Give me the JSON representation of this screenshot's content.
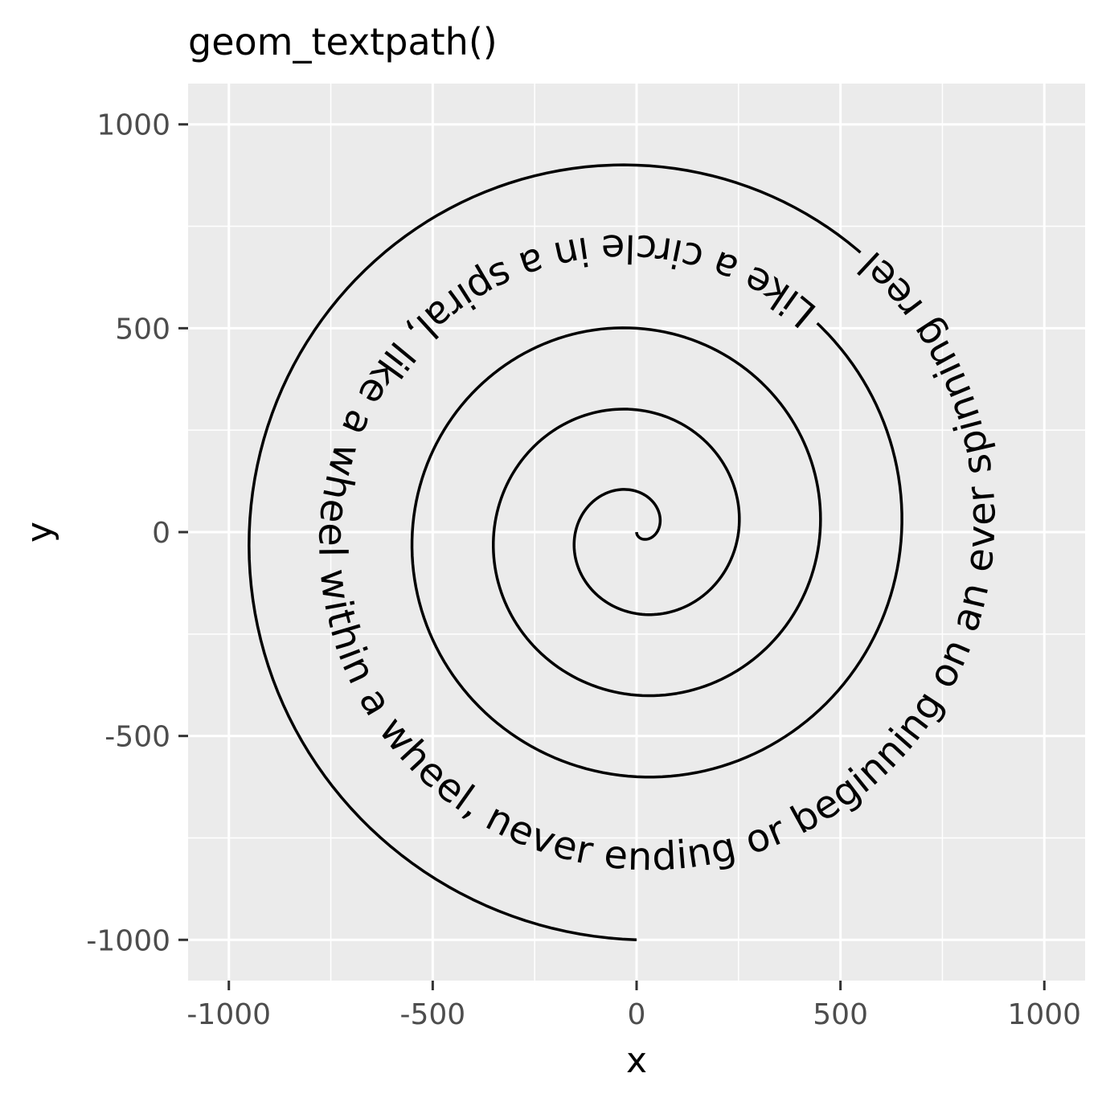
{
  "chart_data": {
    "type": "line",
    "title": "geom_textpath()",
    "xlabel": "x",
    "ylabel": "y",
    "xlim": [
      -1100,
      1100
    ],
    "ylim": [
      -1100,
      1100
    ],
    "grid": true,
    "x_ticks": [
      -1000,
      -500,
      0,
      500,
      1000
    ],
    "x_tick_labels": [
      "-1000",
      "-500",
      "0",
      "500",
      "1000"
    ],
    "y_ticks": [
      -1000,
      -500,
      0,
      500,
      1000
    ],
    "y_tick_labels": [
      "-1000",
      "-500",
      "0",
      "500",
      "1000"
    ],
    "series": [
      {
        "shape": "spiral",
        "t_range": [
          0,
          5.0
        ],
        "points": [
          {
            "x": 0,
            "y": 0
          },
          {
            "x": -50,
            "y": -25
          },
          {
            "x": -100,
            "y": 50
          },
          {
            "x": 50,
            "y": 175
          },
          {
            "x": 255,
            "y": -60
          },
          {
            "x": -55,
            "y": -340
          },
          {
            "x": -425,
            "y": 50
          },
          {
            "x": -385,
            "y": 240
          },
          {
            "x": 765,
            "y": 445
          },
          {
            "x": 920,
            "y": -50
          },
          {
            "x": 0,
            "y": -1000
          }
        ],
        "label": "Like a circle in a spiral, like a wheel within a wheel, never ending or beginning on an ever spinning reel"
      }
    ]
  },
  "colors": {
    "panel_bg": "#ebebeb",
    "grid_major": "#ffffff",
    "line": "#000000",
    "tick_text": "#4d4d4d"
  }
}
